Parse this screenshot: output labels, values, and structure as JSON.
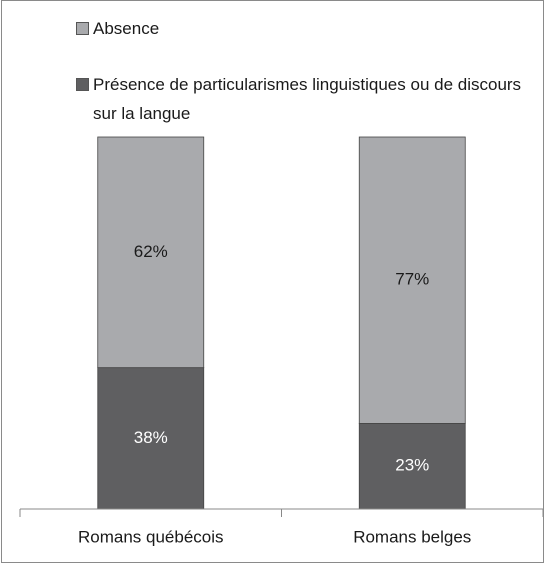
{
  "chart_data": {
    "type": "stacked_bar",
    "categories": [
      "Romans québécois",
      "Romans belges"
    ],
    "series": [
      {
        "name": "Présence de particularismes linguistiques ou de discours sur la langue",
        "color": "#5f5f61",
        "values": [
          38,
          23
        ],
        "value_labels": [
          "38%",
          "23%"
        ]
      },
      {
        "name": "Absence",
        "color": "#a9aaad",
        "values": [
          62,
          77
        ],
        "value_labels": [
          "62%",
          "77%"
        ]
      }
    ]
  }
}
